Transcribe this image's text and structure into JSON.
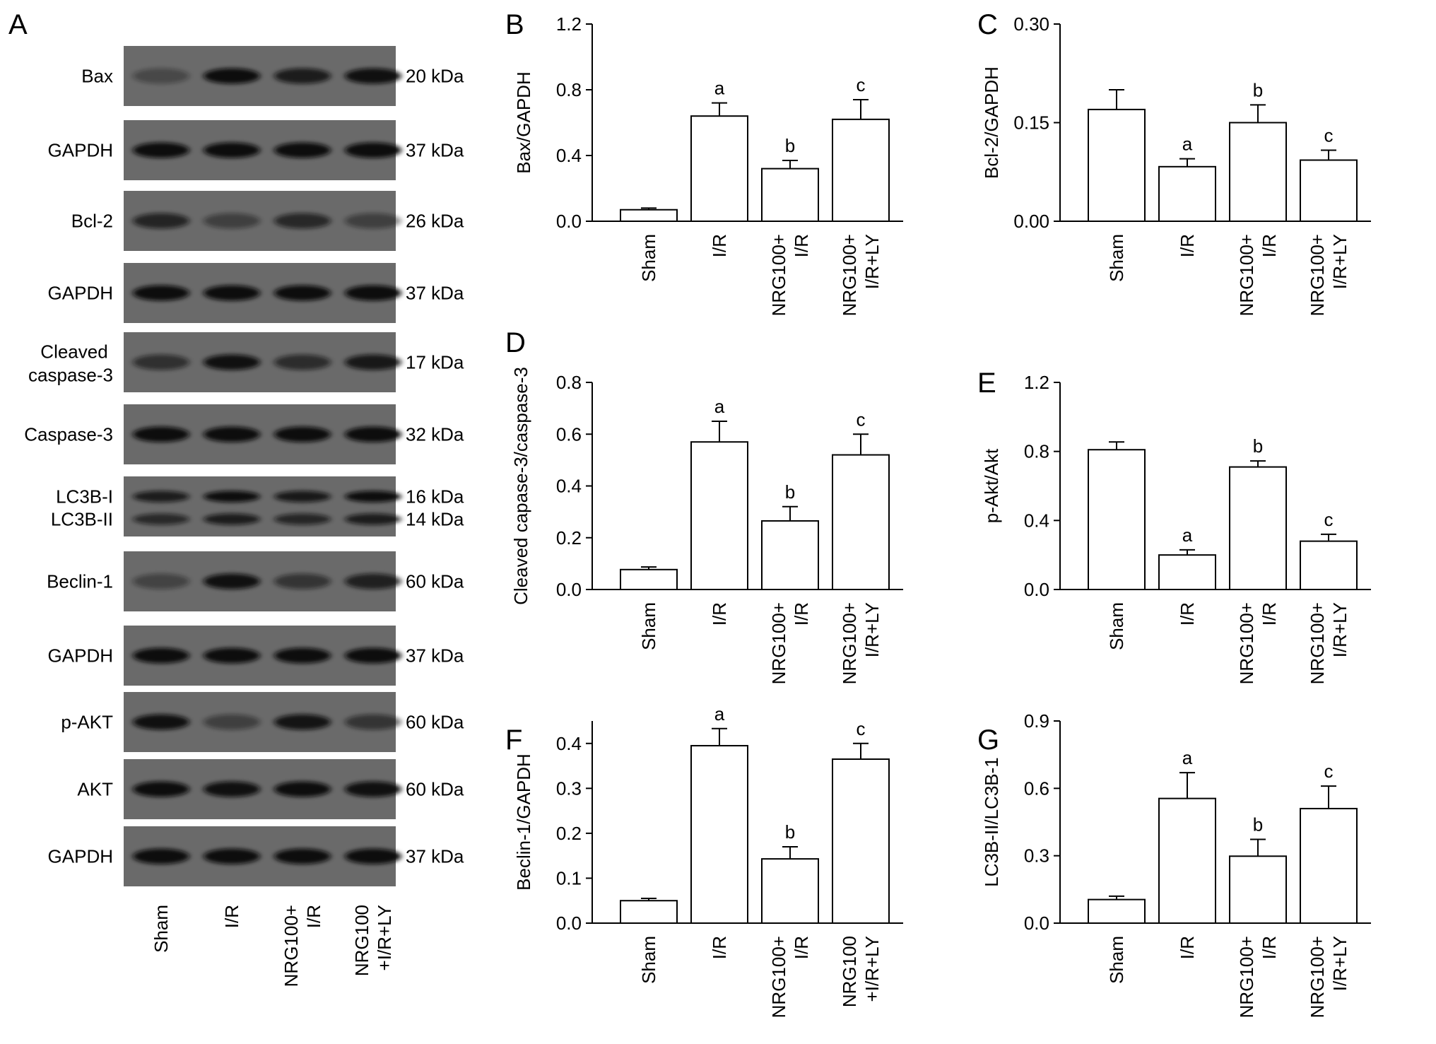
{
  "figure": {
    "panel_label": "A",
    "blot_rows": [
      {
        "label": [
          "Bax"
        ],
        "mw": "20 kDa"
      },
      {
        "label": [
          "GAPDH"
        ],
        "mw": "37 kDa"
      },
      {
        "label": [
          "Bcl-2"
        ],
        "mw": "26 kDa"
      },
      {
        "label": [
          "GAPDH"
        ],
        "mw": "37 kDa"
      },
      {
        "label": [
          "Cleaved",
          "caspase-3"
        ],
        "mw": "17 kDa"
      },
      {
        "label": [
          "Caspase-3"
        ],
        "mw": "32 kDa"
      },
      {
        "label": [
          "LC3B-I",
          "LC3B-II"
        ],
        "mw": "16 kDa",
        "mw2": "14 kDa"
      },
      {
        "label": [
          "Beclin-1"
        ],
        "mw": "60 kDa"
      },
      {
        "label": [
          "GAPDH"
        ],
        "mw": "37 kDa"
      },
      {
        "label": [
          "p-AKT"
        ],
        "mw": "60 kDa"
      },
      {
        "label": [
          "AKT"
        ],
        "mw": "60 kDa"
      },
      {
        "label": [
          "GAPDH"
        ],
        "mw": "37 kDa"
      }
    ],
    "blot_band_intensity": [
      [
        0.25,
        1.0,
        0.8,
        0.95
      ],
      [
        1,
        1,
        1,
        1
      ],
      [
        0.7,
        0.35,
        0.65,
        0.35
      ],
      [
        1,
        1,
        1,
        1
      ],
      [
        0.55,
        0.95,
        0.6,
        0.85
      ],
      [
        1,
        1,
        1,
        1
      ],
      [
        0.8,
        1.0,
        0.85,
        1.0
      ],
      [
        0.3,
        0.95,
        0.5,
        0.75
      ],
      [
        1,
        1,
        1,
        1
      ],
      [
        0.95,
        0.35,
        0.9,
        0.5
      ],
      [
        1,
        0.95,
        1,
        0.95
      ],
      [
        1,
        1,
        1,
        1
      ]
    ],
    "blot_lanes": [
      [
        "Sham"
      ],
      [
        "I/R"
      ],
      [
        "NRG100+",
        "I/R"
      ],
      [
        "NRG100",
        "+I/R+LY"
      ]
    ]
  },
  "chart_data": [
    {
      "panel": "B",
      "type": "bar",
      "categories": [
        [
          "Sham"
        ],
        [
          "I/R"
        ],
        [
          "NRG100+",
          "I/R"
        ],
        [
          "NRG100+",
          "I/R+LY"
        ]
      ],
      "values": [
        0.07,
        0.64,
        0.32,
        0.62
      ],
      "errors": [
        0.01,
        0.08,
        0.05,
        0.12
      ],
      "sig": [
        "",
        "a",
        "b",
        "c"
      ],
      "ylabel": "Bax/GAPDH",
      "ylim": [
        0,
        1.2
      ],
      "yticks": [
        "0.0",
        "0.4",
        "0.8",
        "1.2"
      ]
    },
    {
      "panel": "C",
      "type": "bar",
      "categories": [
        [
          "Sham"
        ],
        [
          "I/R"
        ],
        [
          "NRG100+",
          "I/R"
        ],
        [
          "NRG100+",
          "I/R+LY"
        ]
      ],
      "values": [
        0.17,
        0.083,
        0.15,
        0.093
      ],
      "errors": [
        0.03,
        0.012,
        0.027,
        0.015
      ],
      "sig": [
        "",
        "a",
        "b",
        "c"
      ],
      "ylabel": "Bcl-2/GAPDH",
      "ylim": [
        0,
        0.3
      ],
      "yticks": [
        "0.00",
        "0.15",
        "0.30"
      ]
    },
    {
      "panel": "D",
      "type": "bar",
      "categories": [
        [
          "Sham"
        ],
        [
          "I/R"
        ],
        [
          "NRG100+",
          "I/R"
        ],
        [
          "NRG100+",
          "I/R+LY"
        ]
      ],
      "values": [
        0.077,
        0.57,
        0.265,
        0.52
      ],
      "errors": [
        0.01,
        0.08,
        0.055,
        0.08
      ],
      "sig": [
        "",
        "a",
        "b",
        "c"
      ],
      "ylabel": "Cleaved capase-3/caspase-3",
      "ylim": [
        0,
        0.8
      ],
      "yticks": [
        "0.0",
        "0.2",
        "0.4",
        "0.6",
        "0.8"
      ]
    },
    {
      "panel": "E",
      "type": "bar",
      "categories": [
        [
          "Sham"
        ],
        [
          "I/R"
        ],
        [
          "NRG100+",
          "I/R"
        ],
        [
          "NRG100+",
          "I/R+LY"
        ]
      ],
      "values": [
        0.81,
        0.2,
        0.71,
        0.28
      ],
      "errors": [
        0.045,
        0.03,
        0.035,
        0.04
      ],
      "sig": [
        "",
        "a",
        "b",
        "c"
      ],
      "ylabel": "p-Akt/Akt",
      "ylim": [
        0,
        1.2
      ],
      "yticks": [
        "0.0",
        "0.4",
        "0.8",
        "1.2"
      ]
    },
    {
      "panel": "F",
      "type": "bar",
      "categories": [
        [
          "Sham"
        ],
        [
          "I/R"
        ],
        [
          "NRG100+",
          "I/R"
        ],
        [
          "NRG100",
          "+I/R+LY"
        ]
      ],
      "values": [
        0.05,
        0.395,
        0.143,
        0.365
      ],
      "errors": [
        0.005,
        0.038,
        0.027,
        0.035
      ],
      "sig": [
        "",
        "a",
        "b",
        "c"
      ],
      "ylabel": "Beclin-1/GAPDH",
      "ylim": [
        0,
        0.45
      ],
      "yticks": [
        "0.0",
        "0.1",
        "0.2",
        "0.3",
        "0.4"
      ]
    },
    {
      "panel": "G",
      "type": "bar",
      "categories": [
        [
          "Sham"
        ],
        [
          "I/R"
        ],
        [
          "NRG100+",
          "I/R"
        ],
        [
          "NRG100+",
          "I/R+LY"
        ]
      ],
      "values": [
        0.105,
        0.555,
        0.298,
        0.51
      ],
      "errors": [
        0.015,
        0.115,
        0.075,
        0.1
      ],
      "sig": [
        "",
        "a",
        "b",
        "c"
      ],
      "ylabel": "LC3B-II/LC3B-1",
      "ylim": [
        0,
        0.9
      ],
      "yticks": [
        "0.0",
        "0.3",
        "0.6",
        "0.9"
      ]
    }
  ]
}
